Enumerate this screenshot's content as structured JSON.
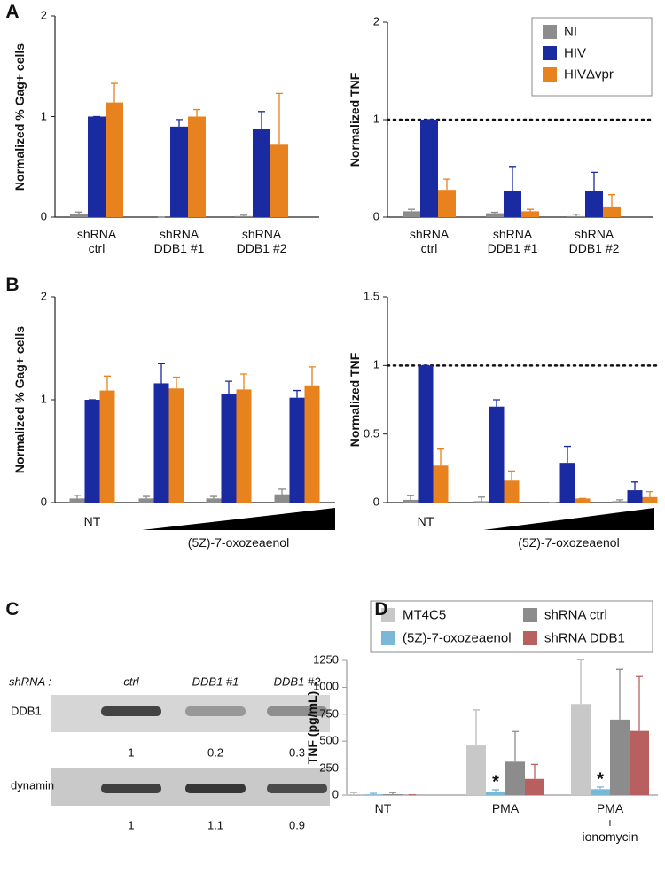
{
  "chart_data": [
    {
      "type": "bar",
      "panel": "A",
      "y_label": "Normalized % Gag+ cells",
      "categories": [
        "shRNA\nctrl",
        "shRNA\nDDB1 #1",
        "shRNA\nDDB1 #2"
      ],
      "series": [
        {
          "color": "#8c8c8c",
          "values": [
            0.03,
            0,
            0.01
          ],
          "errors": [
            0.02,
            0,
            0.01
          ]
        },
        {
          "color": "#1a2aa0",
          "values": [
            1,
            0.9,
            0.88
          ],
          "errors": [
            0,
            0.07,
            0.17
          ]
        },
        {
          "color": "#e8821e",
          "values": [
            1.14,
            1,
            0.72
          ],
          "errors": [
            0.19,
            0.07,
            0.51
          ]
        }
      ],
      "ylim": [
        0,
        2
      ],
      "yticks": [
        0,
        1,
        2
      ],
      "grid": false
    },
    {
      "type": "bar",
      "y_label": "Normalized TNF",
      "categories": [
        "shRNA\nctrl",
        "shRNA\nDDB1 #1",
        "shRNA\nDDB1 #2"
      ],
      "series": [
        {
          "name": "NI",
          "color": "#8c8c8c",
          "values": [
            0.06,
            0.04,
            0.01
          ],
          "errors": [
            0.02,
            0.01,
            0.02
          ]
        },
        {
          "name": "HIV",
          "color": "#1a2aa0",
          "values": [
            1,
            0.27,
            0.27
          ],
          "errors": [
            0,
            0.25,
            0.19
          ]
        },
        {
          "name": "HIVΔvpr",
          "color": "#e8821e",
          "values": [
            0.28,
            0.06,
            0.11
          ],
          "errors": [
            0.11,
            0.02,
            0.12
          ]
        }
      ],
      "ylim": [
        0,
        2
      ],
      "yticks": [
        0,
        1,
        2
      ],
      "grid": false,
      "reference_line": 1,
      "legend": "upper right"
    },
    {
      "type": "bar",
      "panel": "B",
      "y_label": "Normalized % Gag+ cells",
      "categories": [
        "NT",
        null,
        null,
        null
      ],
      "annotation": "(5Z)-7-oxozeaenol",
      "gradient_wedge": true,
      "series": [
        {
          "color": "#8c8c8c",
          "values": [
            0.04,
            0.04,
            0.04,
            0.08
          ],
          "errors": [
            0.03,
            0.02,
            0.02,
            0.05
          ]
        },
        {
          "color": "#1a2aa0",
          "values": [
            1,
            1.16,
            1.06,
            1.02
          ],
          "errors": [
            0,
            0.19,
            0.12,
            0.07
          ]
        },
        {
          "color": "#e8821e",
          "values": [
            1.09,
            1.11,
            1.1,
            1.14
          ],
          "errors": [
            0.14,
            0.11,
            0.15,
            0.18
          ]
        }
      ],
      "ylim": [
        0,
        2
      ],
      "yticks": [
        0,
        1,
        2
      ],
      "grid": false
    },
    {
      "type": "bar",
      "y_label": "Normalized TNF",
      "categories": [
        "NT",
        null,
        null,
        null
      ],
      "annotation": "(5Z)-7-oxozeaenol",
      "gradient_wedge": true,
      "series": [
        {
          "color": "#8c8c8c",
          "values": [
            0.02,
            0.01,
            0,
            0.01
          ],
          "errors": [
            0.03,
            0.03,
            0,
            0.01
          ]
        },
        {
          "color": "#1a2aa0",
          "values": [
            1,
            0.7,
            0.29,
            0.09
          ],
          "errors": [
            0,
            0.05,
            0.12,
            0.06
          ]
        },
        {
          "color": "#e8821e",
          "values": [
            0.27,
            0.16,
            0.03,
            0.04
          ],
          "errors": [
            0.12,
            0.07,
            0,
            0.04
          ]
        }
      ],
      "ylim": [
        0,
        1.5
      ],
      "yticks": [
        0,
        0.5,
        1,
        1.5
      ],
      "grid": false,
      "reference_line": 1
    },
    {
      "type": "bar",
      "panel": "D",
      "y_label": "TNF (pg/mL)",
      "categories": [
        "NT",
        "PMA",
        "PMA\n+ ionomycin"
      ],
      "series": [
        {
          "name": "MT4C5",
          "color": "#c8c8c8",
          "values": [
            8,
            460,
            845
          ],
          "errors": [
            15,
            330,
            410
          ]
        },
        {
          "name": "(5Z)-7-oxozeaenol",
          "color": "#7ab8d8",
          "values": [
            6,
            32,
            55
          ],
          "errors": [
            10,
            18,
            20
          ],
          "markers": [
            null,
            "*",
            "*"
          ]
        },
        {
          "name": "shRNA ctrl",
          "color": "#8c8c8c",
          "values": [
            8,
            310,
            700
          ],
          "errors": [
            15,
            280,
            465
          ]
        },
        {
          "name": "shRNA DDB1",
          "color": "#b86060",
          "values": [
            2,
            150,
            595
          ],
          "errors": [
            0,
            135,
            505
          ]
        }
      ],
      "ylim": [
        0,
        1250
      ],
      "yticks": [
        0,
        250,
        500,
        750,
        1000,
        1250
      ],
      "grid": false,
      "legend": "above"
    }
  ],
  "blot": {
    "panel": "C",
    "row_header": "shRNA :",
    "lanes": [
      "ctrl",
      "DDB1 #1",
      "DDB1 #2"
    ],
    "bands": [
      {
        "name": "DDB1",
        "quantification": [
          1,
          0.2,
          0.3
        ]
      },
      {
        "name": "dynamin",
        "quantification": [
          1,
          1.1,
          0.9
        ]
      }
    ]
  }
}
